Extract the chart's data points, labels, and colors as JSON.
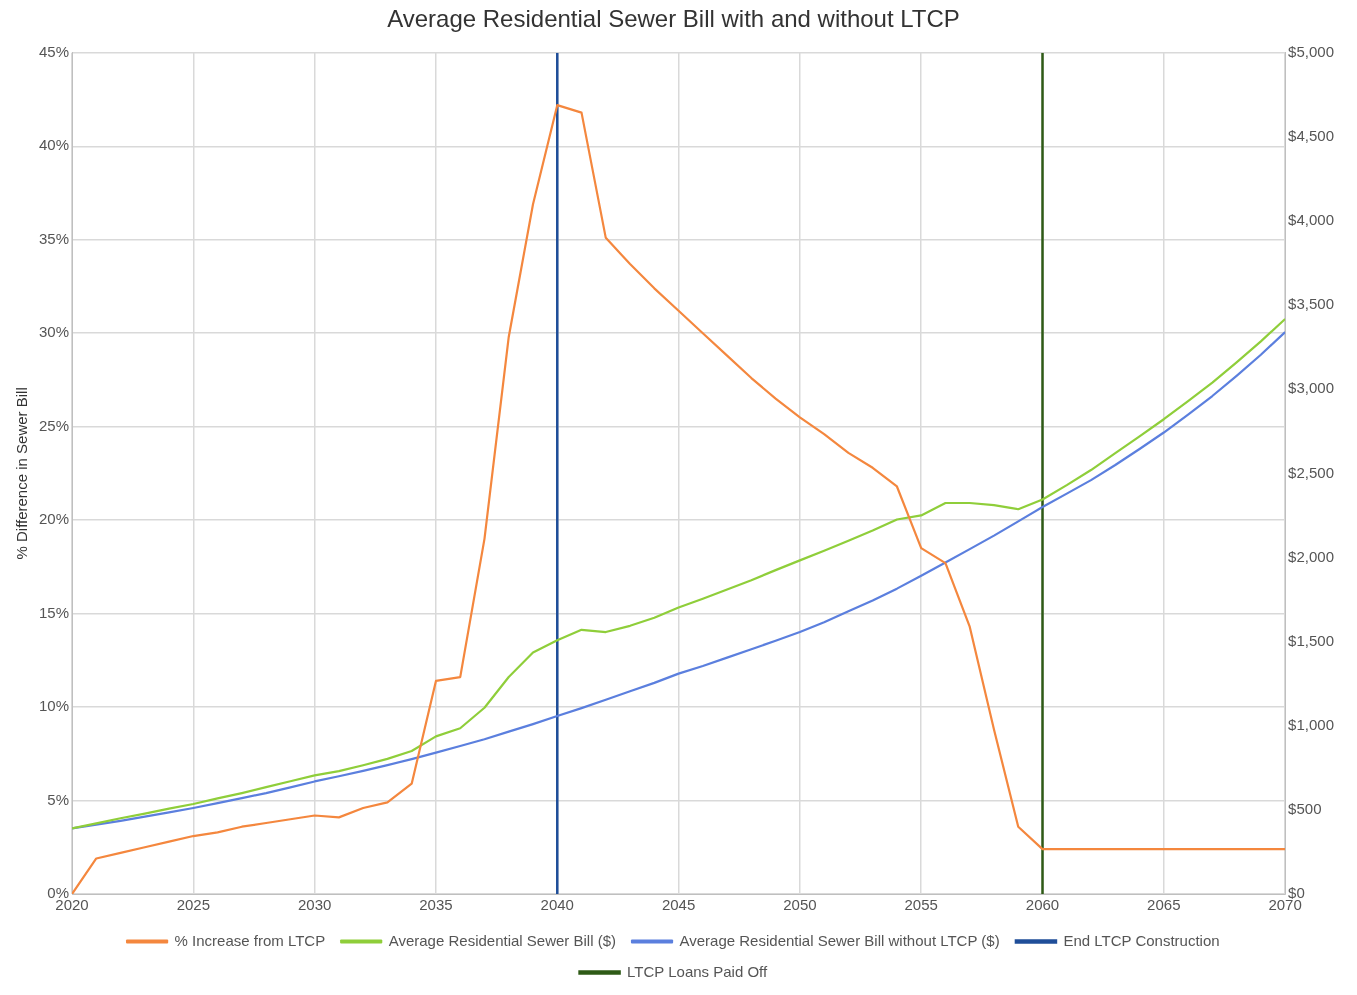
{
  "chart_data": {
    "type": "line",
    "title": "Average Residential Sewer Bill with and without LTCP",
    "ylabel": "% Difference in Sewer Bill",
    "x": [
      2020,
      2021,
      2022,
      2023,
      2024,
      2025,
      2026,
      2027,
      2028,
      2029,
      2030,
      2031,
      2032,
      2033,
      2034,
      2035,
      2036,
      2037,
      2038,
      2039,
      2040,
      2041,
      2042,
      2043,
      2044,
      2045,
      2046,
      2047,
      2048,
      2049,
      2050,
      2051,
      2052,
      2053,
      2054,
      2055,
      2056,
      2057,
      2058,
      2059,
      2060,
      2061,
      2062,
      2063,
      2064,
      2065,
      2066,
      2067,
      2068,
      2069,
      2070
    ],
    "series": [
      {
        "name": "% Increase from LTCP",
        "color": "#f4873e",
        "values": [
          0,
          1.9,
          2.2,
          2.5,
          2.8,
          3.1,
          3.3,
          3.6,
          3.8,
          4.0,
          4.2,
          4.1,
          4.6,
          4.9,
          5.9,
          11.4,
          11.6,
          19,
          29.8,
          36.9,
          42.2,
          41.8,
          35.1,
          33.7,
          32.4,
          31.2,
          30,
          28.8,
          27.6,
          26.5,
          25.5,
          24.6,
          23.6,
          22.8,
          21.8,
          18.5,
          17.7,
          14.3,
          8.8,
          3.6,
          2.4,
          2.4,
          2.4,
          2.4,
          2.4,
          2.4,
          2.4,
          2.4,
          2.4,
          2.4,
          2.4
        ]
      },
      {
        "name": "Average Residential Sewer Bill ($)",
        "color": "#8fce3a",
        "axis": "y2",
        "values": [
          390,
          420,
          450,
          478,
          507,
          535,
          568,
          600,
          635,
          670,
          705,
          730,
          765,
          803,
          850,
          937,
          985,
          1107,
          1290,
          1435,
          1508,
          1570,
          1557,
          1594,
          1642,
          1703,
          1755,
          1810,
          1865,
          1925,
          1983,
          2040,
          2100,
          2160,
          2226,
          2250,
          2324,
          2324,
          2311,
          2287,
          2345,
          2430,
          2520,
          2620,
          2720,
          2822,
          2930,
          3040,
          3160,
          3285,
          3418
        ]
      },
      {
        "name": "Average Residential Sewer Bill without LTCP ($)",
        "color": "#5b7fde",
        "axis": "y2",
        "values": [
          390,
          412,
          435,
          460,
          485,
          511,
          540,
          570,
          600,
          634,
          669,
          700,
          732,
          766,
          802,
          840,
          880,
          920,
          965,
          1010,
          1058,
          1105,
          1155,
          1205,
          1255,
          1310,
          1355,
          1405,
          1455,
          1505,
          1557,
          1615,
          1680,
          1745,
          1815,
          1892,
          1970,
          2050,
          2130,
          2215,
          2300,
          2380,
          2460,
          2550,
          2645,
          2743,
          2850,
          2960,
          3080,
          3205,
          3340
        ]
      }
    ],
    "ref_lines": [
      {
        "axis": "x",
        "value": 2040,
        "label": "End LTCP Construction",
        "color": "#1f4e99"
      },
      {
        "axis": "x",
        "value": 2060,
        "label": "LTCP Loans Paid Off",
        "color": "#2e5a16"
      }
    ],
    "xlim": [
      2020,
      2070
    ],
    "xticks": [
      2020,
      2025,
      2030,
      2035,
      2040,
      2045,
      2050,
      2055,
      2060,
      2065,
      2070
    ],
    "ylim": [
      0,
      45
    ],
    "yticks": [
      {
        "value": 0,
        "label": "0%"
      },
      {
        "value": 5,
        "label": "5%"
      },
      {
        "value": 10,
        "label": "10%"
      },
      {
        "value": 15,
        "label": "15%"
      },
      {
        "value": 20,
        "label": "20%"
      },
      {
        "value": 25,
        "label": "25%"
      },
      {
        "value": 30,
        "label": "30%"
      },
      {
        "value": 35,
        "label": "35%"
      },
      {
        "value": 40,
        "label": "40%"
      },
      {
        "value": 45,
        "label": "45%"
      }
    ],
    "y2lim": [
      0,
      5000
    ],
    "y2ticks": [
      {
        "value": 0,
        "label": "$0"
      },
      {
        "value": 500,
        "label": "$500"
      },
      {
        "value": 1000,
        "label": "$1,000"
      },
      {
        "value": 1500,
        "label": "$1,500"
      },
      {
        "value": 2000,
        "label": "$2,000"
      },
      {
        "value": 2500,
        "label": "$2,500"
      },
      {
        "value": 3000,
        "label": "$3,000"
      },
      {
        "value": 3500,
        "label": "$3,500"
      },
      {
        "value": 4000,
        "label": "$4,000"
      },
      {
        "value": 4500,
        "label": "$4,500"
      },
      {
        "value": 5000,
        "label": "$5,000"
      }
    ],
    "grid": true,
    "legend": "bottom",
    "marker": "none",
    "line_style": "solid"
  }
}
